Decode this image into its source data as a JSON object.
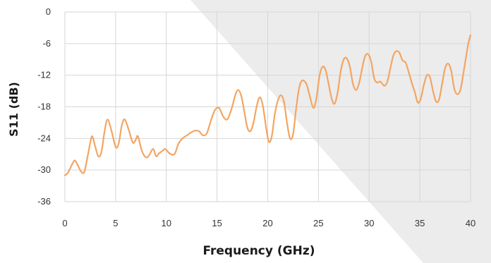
{
  "colors": {
    "background": "#ffffff",
    "shade": "#ececec",
    "grid": "#d6d6d6",
    "line": "#f4a561",
    "text": "#333333"
  },
  "chart_data": {
    "type": "line",
    "title": "",
    "xlabel": "Frequency (GHz)",
    "ylabel": "S11 (dB)",
    "xlim": [
      0,
      40
    ],
    "ylim": [
      -36,
      0
    ],
    "xticks": [
      0,
      5,
      10,
      15,
      20,
      25,
      30,
      35,
      40
    ],
    "yticks": [
      0,
      -6,
      -12,
      -18,
      -24,
      -30,
      -36
    ],
    "grid": true,
    "legend": "none",
    "series": [
      {
        "values": [
          [
            0,
            -31
          ],
          [
            0.3,
            -30.5
          ],
          [
            0.8,
            -28.6
          ],
          [
            1.0,
            -28.2
          ],
          [
            1.3,
            -29.2
          ],
          [
            1.6,
            -30.3
          ],
          [
            1.9,
            -30.4
          ],
          [
            2.2,
            -27.8
          ],
          [
            2.5,
            -24.8
          ],
          [
            2.7,
            -23.6
          ],
          [
            3.0,
            -25.6
          ],
          [
            3.3,
            -27.4
          ],
          [
            3.6,
            -26.6
          ],
          [
            3.9,
            -22.8
          ],
          [
            4.2,
            -20.4
          ],
          [
            4.6,
            -22.6
          ],
          [
            5.0,
            -25.6
          ],
          [
            5.3,
            -25.0
          ],
          [
            5.6,
            -21.6
          ],
          [
            5.9,
            -20.4
          ],
          [
            6.3,
            -22.4
          ],
          [
            6.7,
            -24.8
          ],
          [
            7.0,
            -24.2
          ],
          [
            7.2,
            -23.6
          ],
          [
            7.6,
            -26.4
          ],
          [
            8.0,
            -27.6
          ],
          [
            8.3,
            -27.2
          ],
          [
            8.7,
            -26.0
          ],
          [
            9.0,
            -27.4
          ],
          [
            9.3,
            -26.8
          ],
          [
            9.6,
            -26.4
          ],
          [
            9.9,
            -26.0
          ],
          [
            10.3,
            -26.8
          ],
          [
            10.8,
            -27.0
          ],
          [
            11.2,
            -25.0
          ],
          [
            11.6,
            -24.0
          ],
          [
            12.2,
            -23.2
          ],
          [
            12.7,
            -22.6
          ],
          [
            13.2,
            -22.6
          ],
          [
            13.6,
            -23.4
          ],
          [
            14.0,
            -23.0
          ],
          [
            14.4,
            -20.6
          ],
          [
            14.8,
            -18.6
          ],
          [
            15.2,
            -18.2
          ],
          [
            15.6,
            -19.8
          ],
          [
            16.0,
            -20.4
          ],
          [
            16.4,
            -18.6
          ],
          [
            16.8,
            -15.8
          ],
          [
            17.1,
            -14.8
          ],
          [
            17.4,
            -16.0
          ],
          [
            17.7,
            -19.0
          ],
          [
            18.0,
            -22.0
          ],
          [
            18.3,
            -22.6
          ],
          [
            18.6,
            -21.0
          ],
          [
            18.9,
            -18.0
          ],
          [
            19.2,
            -16.2
          ],
          [
            19.5,
            -17.6
          ],
          [
            19.8,
            -21.4
          ],
          [
            20.1,
            -24.6
          ],
          [
            20.4,
            -23.6
          ],
          [
            20.7,
            -19.4
          ],
          [
            21.0,
            -16.8
          ],
          [
            21.3,
            -15.8
          ],
          [
            21.6,
            -17.0
          ],
          [
            21.9,
            -21.0
          ],
          [
            22.2,
            -24.0
          ],
          [
            22.5,
            -23.2
          ],
          [
            22.8,
            -18.4
          ],
          [
            23.1,
            -14.4
          ],
          [
            23.4,
            -13.0
          ],
          [
            23.8,
            -13.6
          ],
          [
            24.1,
            -15.6
          ],
          [
            24.5,
            -18.2
          ],
          [
            24.8,
            -16.4
          ],
          [
            25.1,
            -12.2
          ],
          [
            25.4,
            -10.4
          ],
          [
            25.7,
            -11.0
          ],
          [
            26.0,
            -13.6
          ],
          [
            26.3,
            -16.4
          ],
          [
            26.6,
            -17.4
          ],
          [
            26.9,
            -15.2
          ],
          [
            27.2,
            -11.2
          ],
          [
            27.5,
            -9.0
          ],
          [
            27.8,
            -8.8
          ],
          [
            28.1,
            -10.4
          ],
          [
            28.4,
            -13.6
          ],
          [
            28.7,
            -14.8
          ],
          [
            29.0,
            -13.6
          ],
          [
            29.3,
            -10.8
          ],
          [
            29.6,
            -8.4
          ],
          [
            29.9,
            -8.0
          ],
          [
            30.2,
            -9.4
          ],
          [
            30.5,
            -12.6
          ],
          [
            30.8,
            -13.4
          ],
          [
            31.1,
            -13.2
          ],
          [
            31.5,
            -14.0
          ],
          [
            31.8,
            -13.2
          ],
          [
            32.1,
            -10.6
          ],
          [
            32.4,
            -8.2
          ],
          [
            32.7,
            -7.4
          ],
          [
            33.0,
            -7.8
          ],
          [
            33.3,
            -9.2
          ],
          [
            33.6,
            -9.6
          ],
          [
            33.9,
            -11.4
          ],
          [
            34.2,
            -13.4
          ],
          [
            34.5,
            -15.2
          ],
          [
            34.8,
            -17.2
          ],
          [
            35.1,
            -16.4
          ],
          [
            35.4,
            -13.8
          ],
          [
            35.7,
            -12.0
          ],
          [
            36.0,
            -12.4
          ],
          [
            36.3,
            -15.0
          ],
          [
            36.6,
            -17.0
          ],
          [
            36.9,
            -16.6
          ],
          [
            37.2,
            -13.6
          ],
          [
            37.5,
            -10.6
          ],
          [
            37.8,
            -9.8
          ],
          [
            38.1,
            -11.2
          ],
          [
            38.4,
            -14.6
          ],
          [
            38.7,
            -15.6
          ],
          [
            39.0,
            -14.8
          ],
          [
            39.3,
            -11.6
          ],
          [
            39.6,
            -8.0
          ],
          [
            39.8,
            -5.8
          ],
          [
            40.0,
            -4.4
          ]
        ]
      }
    ]
  }
}
